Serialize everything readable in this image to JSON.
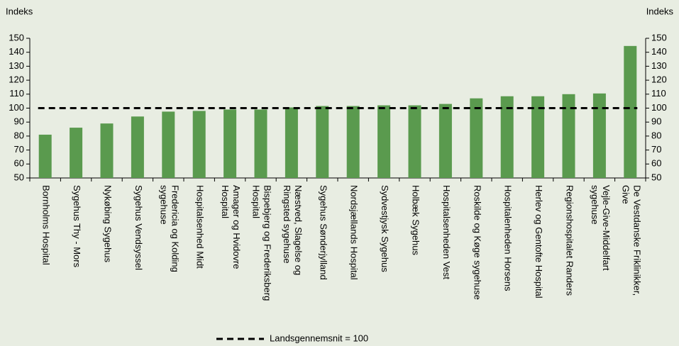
{
  "chart_data": {
    "type": "bar",
    "y_label": "Indeks",
    "y2_label": "Indeks",
    "categories": [
      "Bornholms Hospital",
      "Sygehus Thy - Mors",
      "Nykøbing Sygehus",
      "Sygehus Vendsyssel",
      "Fredericia og Kolding\nsygehuse",
      "Hospitalsenhed Midt",
      "Amager og Hvidovre\nHospital",
      "Bispebjerg og Frederiksberg\nHospital",
      "Næstved, Slagelse og\nRingsted sygehuse",
      "Sygehus Sønderjylland",
      "Nordsjællands Hospital",
      "Sydvestjysk Sygehus",
      "Holbæk Sygehus",
      "Hospitalsenheden Vest",
      "Roskilde og Køge sygehuse",
      "Hospitalenheden Horsens",
      "Herlev og Gentofte Hospital",
      "Regionshospitalet Randers",
      "Vejle-Give-Middelfart\nsygehuse",
      "De Vestdanske Friklinikker,\nGive"
    ],
    "values": [
      81,
      86,
      89,
      94,
      97.5,
      98,
      99,
      99,
      100.5,
      101.5,
      101.5,
      102,
      102,
      103,
      107,
      108.5,
      108.5,
      110,
      110.5,
      144.5
    ],
    "color": "#5a9a4e",
    "reference_line": {
      "name": "Landsgennemsnit = 100",
      "value": 100,
      "color": "#000000"
    },
    "ylim": [
      50,
      150
    ],
    "yticks": [
      50,
      60,
      70,
      80,
      90,
      100,
      110,
      120,
      130,
      140,
      150
    ],
    "y2lim": [
      50,
      150
    ],
    "y2ticks": [
      50,
      60,
      70,
      80,
      90,
      100,
      110,
      120,
      130,
      140,
      150
    ]
  }
}
